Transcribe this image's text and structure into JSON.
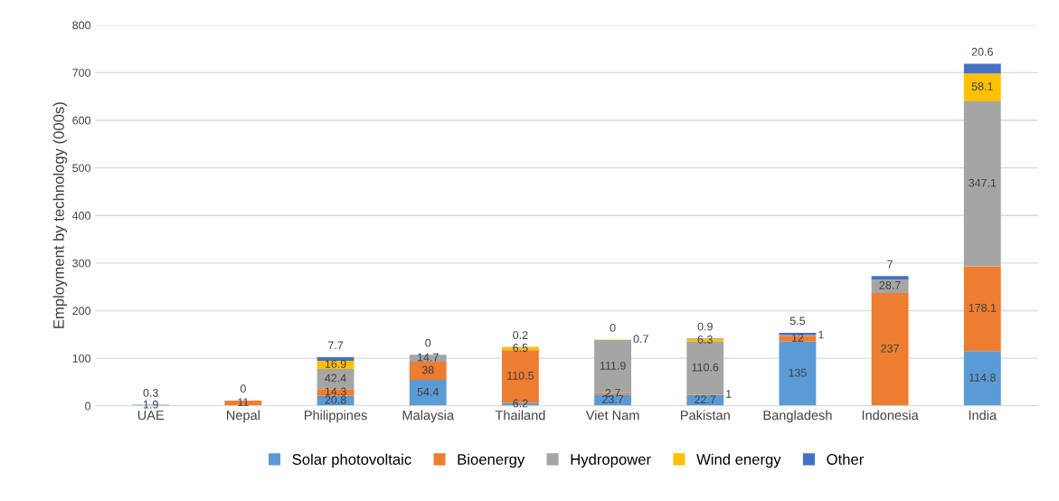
{
  "chart_data": {
    "type": "bar",
    "stacked": true,
    "ylabel": "Employment by technology (000s)",
    "categories": [
      "UAE",
      "Nepal",
      "Philippines",
      "Malaysia",
      "Thailand",
      "Viet Nam",
      "Pakistan",
      "Bangladesh",
      "Indonesia",
      "India"
    ],
    "series": [
      {
        "name": "Solar photovoltaic",
        "color": "#5b9bd5",
        "values": [
          1.9,
          null,
          20.8,
          54.4,
          6.2,
          23.7,
          22.7,
          135,
          null,
          114.8
        ]
      },
      {
        "name": "Bioenergy",
        "color": "#ed7d31",
        "values": [
          null,
          11,
          14.3,
          38,
          110.5,
          2.7,
          1,
          12,
          237,
          178.1
        ]
      },
      {
        "name": "Hydropower",
        "color": "#a5a5a5",
        "values": [
          null,
          null,
          42.4,
          14.7,
          null,
          111.9,
          110.6,
          1,
          28.7,
          347.1
        ]
      },
      {
        "name": "Wind energy",
        "color": "#ffc000",
        "values": [
          null,
          null,
          16.9,
          null,
          6.5,
          0.7,
          6.3,
          null,
          null,
          58.1
        ]
      },
      {
        "name": "Other",
        "color": "#4472c4",
        "values": [
          0.3,
          0,
          7.7,
          0,
          0.2,
          0,
          0.9,
          5.5,
          7,
          20.6
        ]
      }
    ],
    "ylim": [
      0,
      800
    ],
    "yticks": [
      0,
      100,
      200,
      300,
      400,
      500,
      600,
      700,
      800
    ],
    "grid": "y",
    "legend": "bottom",
    "data_labels": true
  }
}
